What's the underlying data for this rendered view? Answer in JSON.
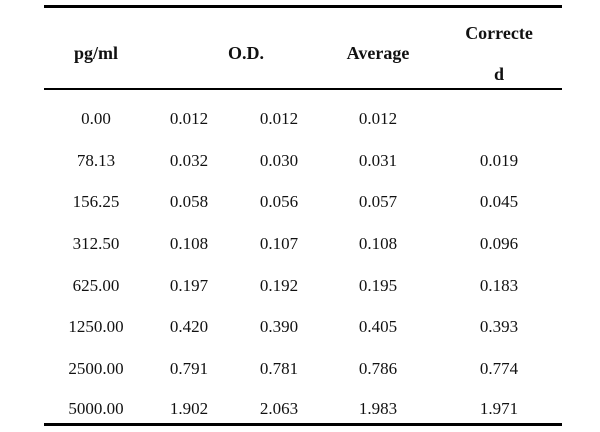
{
  "headers": {
    "pgml": "pg/ml",
    "od": "O.D.",
    "average": "Average",
    "corrected_line1": "Correcte",
    "corrected_line2": "d"
  },
  "rows": [
    {
      "pgml": "0.00",
      "od1": "0.012",
      "od2": "0.012",
      "avg": "0.012",
      "corr": ""
    },
    {
      "pgml": "78.13",
      "od1": "0.032",
      "od2": "0.030",
      "avg": "0.031",
      "corr": "0.019"
    },
    {
      "pgml": "156.25",
      "od1": "0.058",
      "od2": "0.056",
      "avg": "0.057",
      "corr": "0.045"
    },
    {
      "pgml": "312.50",
      "od1": "0.108",
      "od2": "0.107",
      "avg": "0.108",
      "corr": "0.096"
    },
    {
      "pgml": "625.00",
      "od1": "0.197",
      "od2": "0.192",
      "avg": "0.195",
      "corr": "0.183"
    },
    {
      "pgml": "1250.00",
      "od1": "0.420",
      "od2": "0.390",
      "avg": "0.405",
      "corr": "0.393"
    },
    {
      "pgml": "2500.00",
      "od1": "0.791",
      "od2": "0.781",
      "avg": "0.786",
      "corr": "0.774"
    },
    {
      "pgml": "5000.00",
      "od1": "1.902",
      "od2": "2.063",
      "avg": "1.983",
      "corr": "1.971"
    }
  ]
}
